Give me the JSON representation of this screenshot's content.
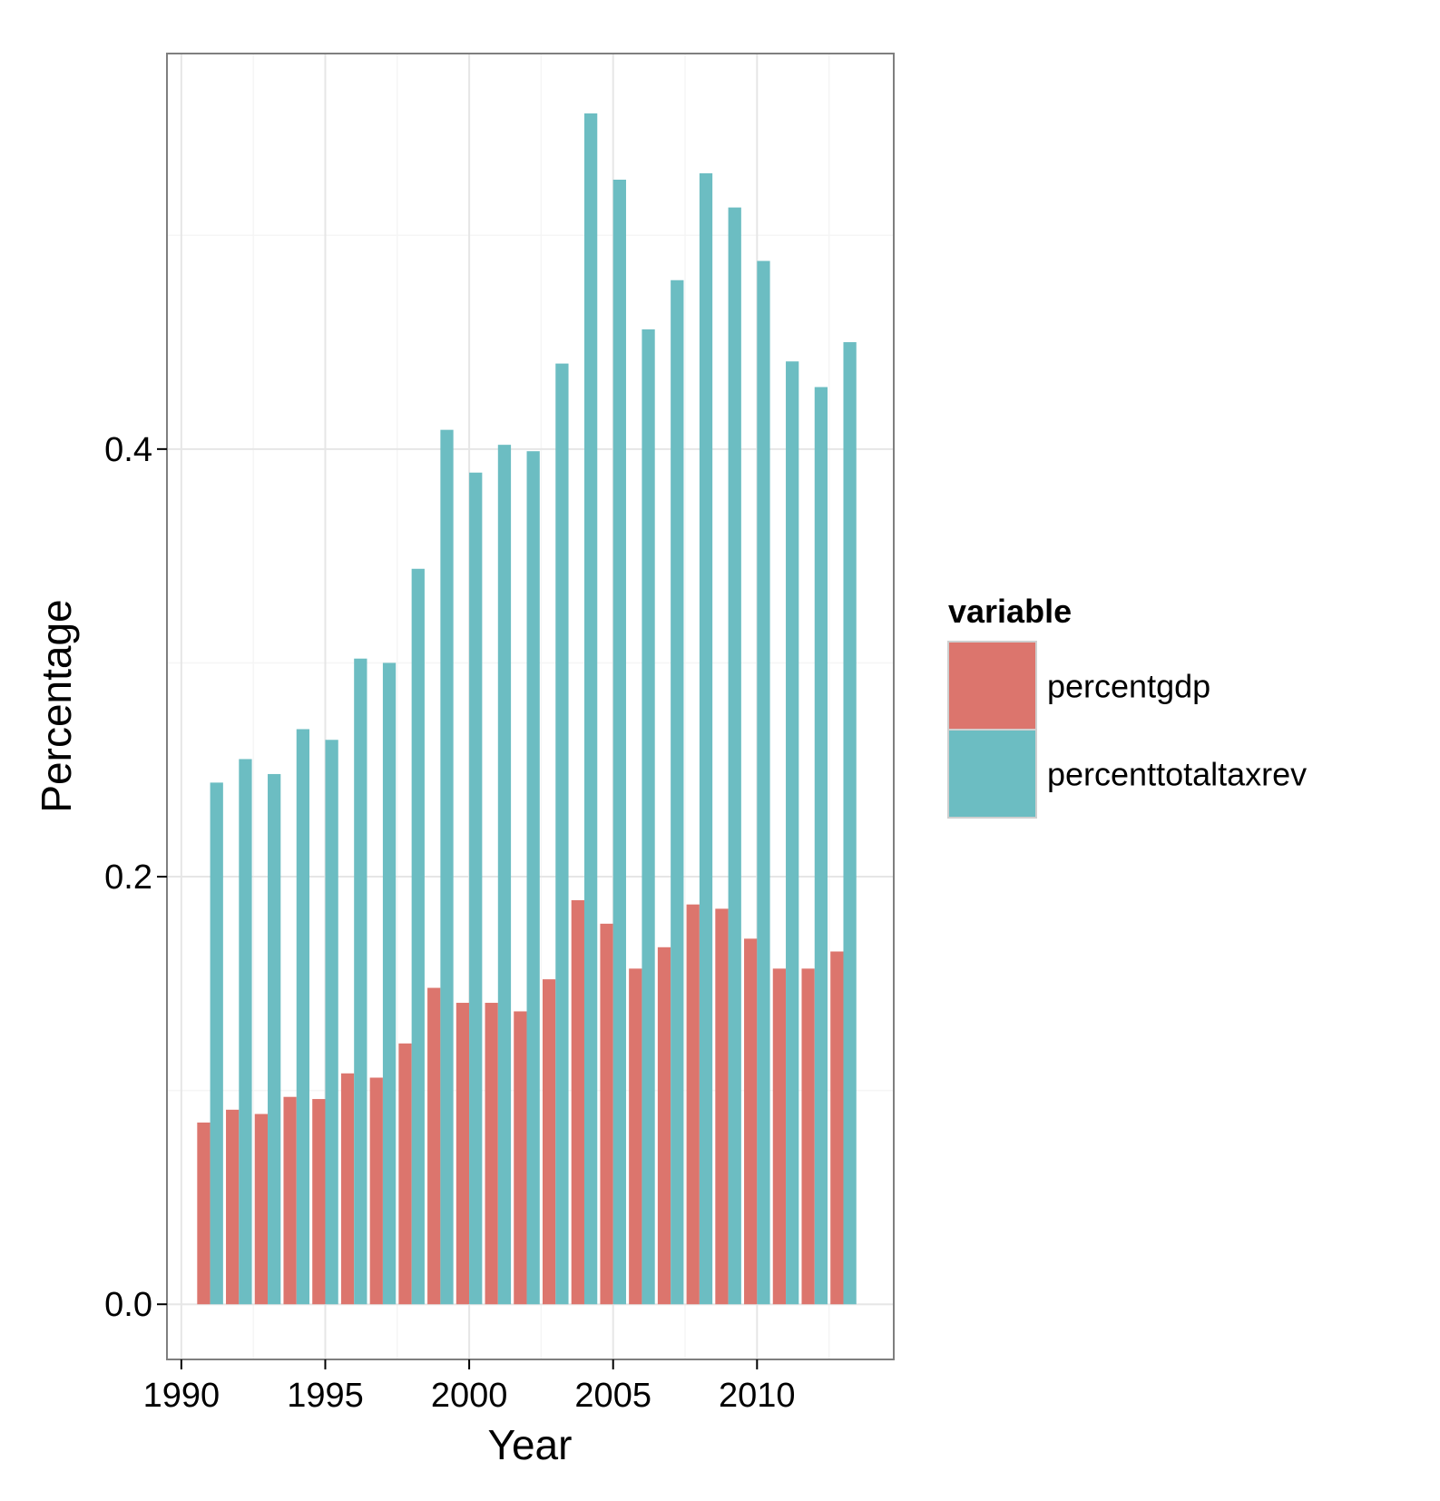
{
  "chart_data": {
    "type": "bar",
    "title": "",
    "xlabel": "Year",
    "ylabel": "Percentage",
    "x": [
      1991,
      1992,
      1993,
      1994,
      1995,
      1996,
      1997,
      1998,
      1999,
      2000,
      2001,
      2002,
      2003,
      2004,
      2005,
      2006,
      2007,
      2008,
      2009,
      2010,
      2011,
      2012,
      2013
    ],
    "series": [
      {
        "name": "percentgdp",
        "color": "#DC756D",
        "values": [
          0.085,
          0.091,
          0.089,
          0.097,
          0.096,
          0.108,
          0.106,
          0.122,
          0.148,
          0.141,
          0.141,
          0.137,
          0.152,
          0.189,
          0.178,
          0.157,
          0.167,
          0.187,
          0.185,
          0.171,
          0.157,
          0.157,
          0.165
        ]
      },
      {
        "name": "percenttotaltaxrev",
        "color": "#6CBDC2",
        "values": [
          0.244,
          0.255,
          0.248,
          0.269,
          0.264,
          0.302,
          0.3,
          0.344,
          0.409,
          0.389,
          0.402,
          0.399,
          0.44,
          0.557,
          0.526,
          0.456,
          0.479,
          0.529,
          0.513,
          0.488,
          0.441,
          0.429,
          0.45
        ]
      }
    ],
    "xlim": [
      1989.5,
      2014.75
    ],
    "ylim": [
      -0.0258,
      0.585
    ],
    "x_ticks": [
      "1990",
      "1995",
      "2000",
      "2005",
      "2010"
    ],
    "y_ticks": [
      "0.0",
      "0.2",
      "0.4"
    ],
    "grid": true,
    "legend": {
      "title": "variable",
      "placement": "right"
    }
  }
}
